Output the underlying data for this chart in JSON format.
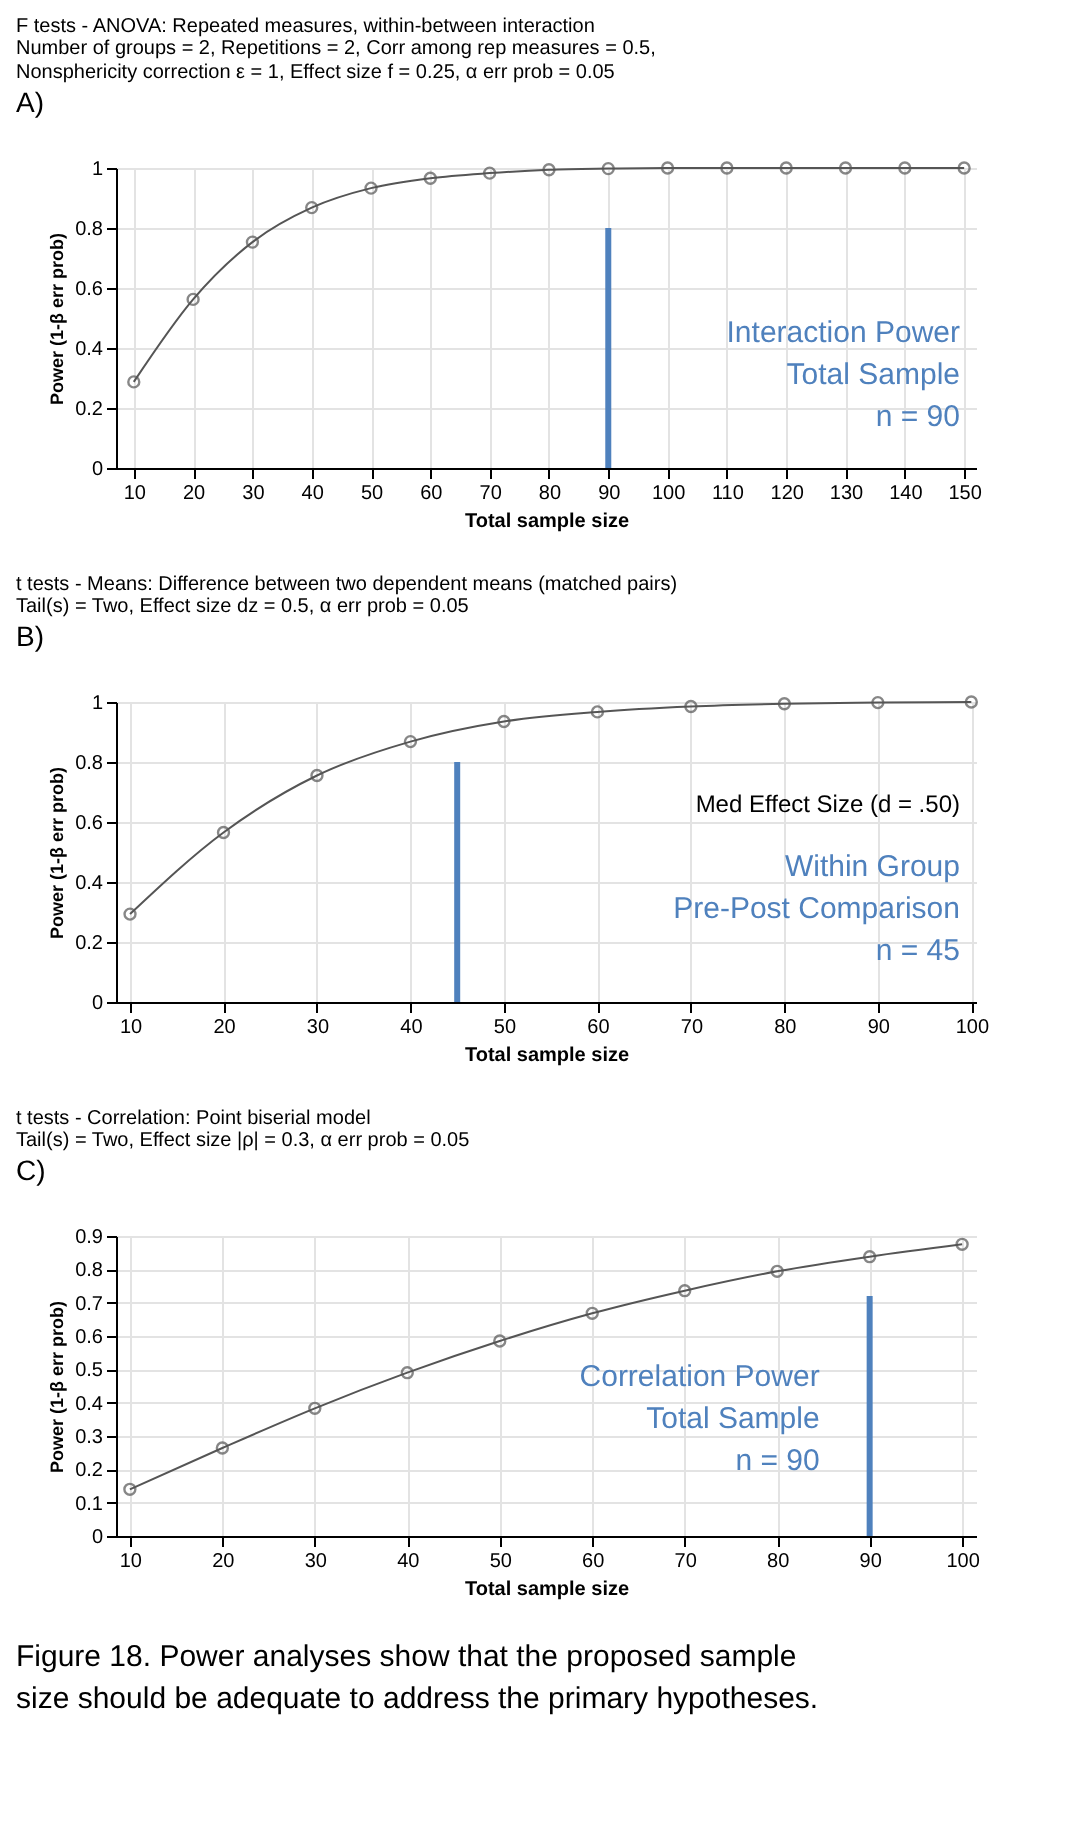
{
  "chart_data": [
    {
      "type": "line",
      "title": "F tests - ANOVA: Repeated measures, within-between interaction",
      "subtitle": "Number of groups = 2, Repetitions = 2, Corr among rep measures = 0.5, Nonsphericity correction ε = 1, Effect size f = 0.25, α err prob = 0.05",
      "xlabel": "Total sample size",
      "ylabel": "Power (1-β err prob)",
      "x": [
        10,
        20,
        30,
        40,
        50,
        60,
        70,
        80,
        90,
        100,
        110,
        120,
        130,
        140,
        150
      ],
      "series": [
        {
          "color": "#555555",
          "values": [
            0.287,
            0.562,
            0.753,
            0.868,
            0.933,
            0.966,
            0.983,
            0.994,
            0.998,
            1,
            1,
            1,
            1,
            1,
            1
          ]
        }
      ],
      "xlim": [
        7,
        152
      ],
      "xticks": [
        10,
        20,
        30,
        40,
        50,
        60,
        70,
        80,
        90,
        100,
        110,
        120,
        130,
        140,
        150
      ],
      "ylim": [
        0,
        1
      ],
      "yticks": [
        0,
        0.2,
        0.4,
        0.6,
        0.8,
        1
      ],
      "grid": true,
      "marker": "circle",
      "line_style": "solid",
      "ref_lines": [
        {
          "axis": "x",
          "value": 90,
          "label": "Interaction Power\nTotal Sample\nn = 90",
          "color": "#4f81bd"
        }
      ],
      "annotations": [
        "A)"
      ]
    },
    {
      "type": "line",
      "title": "t tests - Means: Difference between two dependent means (matched pairs)",
      "subtitle": "Tail(s) = Two, Effect size dz = 0.5, α err prob = 0.05",
      "xlabel": "Total sample size",
      "ylabel": "Power (1-β err prob)",
      "x": [
        10,
        20,
        30,
        40,
        50,
        60,
        70,
        80,
        90,
        100
      ],
      "series": [
        {
          "color": "#555555",
          "values": [
            0.293,
            0.565,
            0.755,
            0.868,
            0.935,
            0.967,
            0.985,
            0.994,
            0.998,
            1
          ]
        }
      ],
      "xlim": [
        8.5,
        100.5
      ],
      "xticks": [
        10,
        20,
        30,
        40,
        50,
        60,
        70,
        80,
        90,
        100
      ],
      "ylim": [
        0,
        1
      ],
      "yticks": [
        0,
        0.2,
        0.4,
        0.6,
        0.8,
        1
      ],
      "grid": true,
      "marker": "circle",
      "line_style": "solid",
      "ref_lines": [
        {
          "axis": "x",
          "value": 45,
          "label": "Within Group\nPre-Post Comparison\nn = 45",
          "color": "#4f81bd"
        }
      ],
      "annotations": [
        "B)",
        "Med Effect Size (d = .50)"
      ]
    },
    {
      "type": "line",
      "title": "t tests - Correlation: Point biserial model",
      "subtitle": "Tail(s) = Two, Effect size |ρ| = 0.3, α err prob = 0.05",
      "xlabel": "Total sample size",
      "ylabel": "Power (1-β err prob)",
      "x": [
        10,
        20,
        30,
        40,
        50,
        60,
        70,
        80,
        90,
        100
      ],
      "series": [
        {
          "color": "#555555",
          "values": [
            0.14,
            0.264,
            0.383,
            0.49,
            0.585,
            0.668,
            0.736,
            0.794,
            0.838,
            0.875
          ]
        }
      ],
      "xlim": [
        8.5,
        101.5
      ],
      "xticks": [
        10,
        20,
        30,
        40,
        50,
        60,
        70,
        80,
        90,
        100
      ],
      "ylim": [
        0,
        0.9
      ],
      "yticks": [
        0,
        0.1,
        0.2,
        0.3,
        0.4,
        0.5,
        0.6,
        0.7,
        0.8,
        0.9
      ],
      "grid": true,
      "marker": "circle",
      "line_style": "solid",
      "ref_lines": [
        {
          "axis": "x",
          "value": 90,
          "label": "Correlation Power\nTotal Sample\nn = 90",
          "color": "#4f81bd"
        }
      ],
      "annotations": [
        "C)"
      ]
    },
    {
      "type": "other",
      "annotations": [
        "Figure 18. Power analyses show that the proposed sample size should be adequate to address the primary hypotheses."
      ]
    }
  ]
}
